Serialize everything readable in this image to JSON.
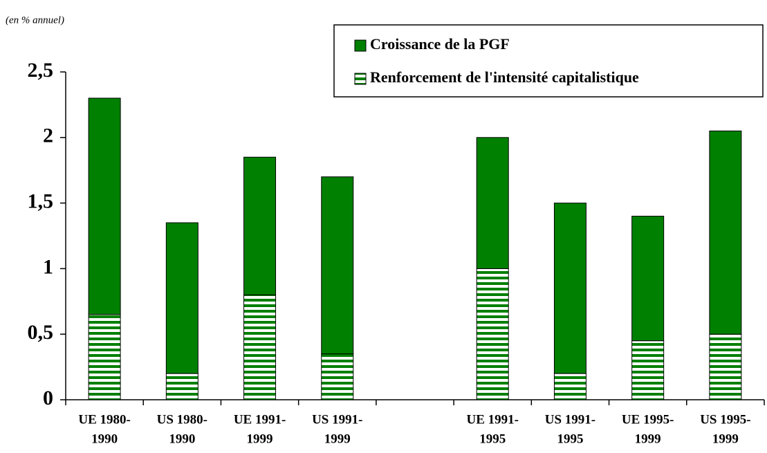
{
  "chart_data": {
    "type": "stacked-bar",
    "subtitle": "(en % annuel)",
    "categories": [
      [
        "UE 1980-",
        "1990"
      ],
      [
        "US 1980-",
        "1990"
      ],
      [
        "UE 1991-",
        "1999"
      ],
      [
        "US 1991-",
        "1999"
      ],
      null,
      [
        "UE 1991-",
        "1995"
      ],
      [
        "US 1991-",
        "1995"
      ],
      [
        "UE 1995-",
        "1999"
      ],
      [
        "US 1995-",
        "1999"
      ]
    ],
    "series": [
      {
        "name": "Renforcement de l'intensité capitalistique",
        "color": "#008000",
        "pattern": "horizontal-stripes",
        "values": [
          0.65,
          0.2,
          0.8,
          0.35,
          null,
          1.0,
          0.2,
          0.45,
          0.5
        ]
      },
      {
        "name": "Croissance de la PGF",
        "color": "#008000",
        "pattern": "solid",
        "values": [
          1.65,
          1.15,
          1.05,
          1.35,
          null,
          1.0,
          1.3,
          0.95,
          1.55
        ]
      }
    ],
    "ylim": [
      0,
      2.5
    ],
    "yticks": [
      0,
      {
        "value": 0.5,
        "label": "0,5"
      },
      1,
      {
        "value": 1.5,
        "label": "1,5"
      },
      2,
      {
        "value": 2.5,
        "label": "2,5"
      }
    ],
    "legend": "top-right"
  }
}
